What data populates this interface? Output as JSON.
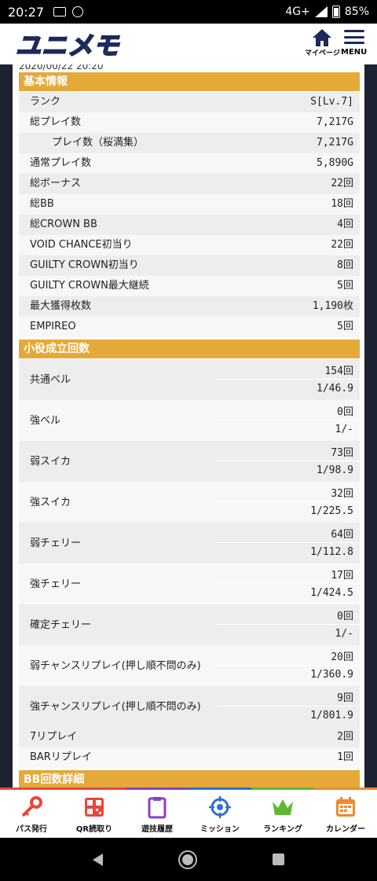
{
  "status": {
    "time": "20:27",
    "network": "4G+",
    "battery": "85%"
  },
  "header": {
    "logo": "ユニメモ",
    "mypage_label": "マイページ",
    "menu_label": "MENU"
  },
  "date_partial": "2020/00/22 20:20",
  "basic": {
    "title": "基本情報",
    "rows": [
      {
        "label": "ランク",
        "value": "S[Lv.7]"
      },
      {
        "label": "総プレイ数",
        "value": "7,217G"
      },
      {
        "label": "プレイ数（桜満集）",
        "value": "7,217G"
      },
      {
        "label": "通常プレイ数",
        "value": "5,890G"
      },
      {
        "label": "総ボーナス",
        "value": "22回"
      },
      {
        "label": "総BB",
        "value": "18回"
      },
      {
        "label": "総CROWN BB",
        "value": "4回"
      },
      {
        "label": "VOID CHANCE初当り",
        "value": "22回"
      },
      {
        "label": "GUILTY CROWN初当り",
        "value": "8回"
      },
      {
        "label": "GUILTY CROWN最大継続",
        "value": "5回"
      },
      {
        "label": "最大獲得枚数",
        "value": "1,190枚"
      },
      {
        "label": "EMPIREO",
        "value": "5回"
      }
    ]
  },
  "small": {
    "title": "小役成立回数",
    "rows": [
      {
        "label": "共通ベル",
        "count": "154回",
        "ratio": "1/46.9"
      },
      {
        "label": "強ベル",
        "count": "0回",
        "ratio": "1/-"
      },
      {
        "label": "弱スイカ",
        "count": "73回",
        "ratio": "1/98.9"
      },
      {
        "label": "強スイカ",
        "count": "32回",
        "ratio": "1/225.5"
      },
      {
        "label": "弱チェリー",
        "count": "64回",
        "ratio": "1/112.8"
      },
      {
        "label": "強チェリー",
        "count": "17回",
        "ratio": "1/424.5"
      },
      {
        "label": "確定チェリー",
        "count": "0回",
        "ratio": "1/-"
      },
      {
        "label": "弱チャンスリプレイ(押し順不問のみ)",
        "count": "20回",
        "ratio": "1/360.9"
      },
      {
        "label": "強チャンスリプレイ(押し順不問のみ)",
        "count": "9回",
        "ratio": "1/801.9"
      }
    ],
    "single": [
      {
        "label": "7リプレイ",
        "value": "2回"
      },
      {
        "label": "BARリプレイ",
        "value": "1回"
      }
    ]
  },
  "bb": {
    "title": "BB回数詳細"
  },
  "nav": [
    {
      "label": "パス発行",
      "color": "#e8463c"
    },
    {
      "label": "QR読取り",
      "color": "#e8463c"
    },
    {
      "label": "遊技履歴",
      "color": "#8a3fc4"
    },
    {
      "label": "ミッション",
      "color": "#2d6fd6"
    },
    {
      "label": "ランキング",
      "color": "#5fb832"
    },
    {
      "label": "カレンダー",
      "color": "#f08a2a"
    }
  ]
}
